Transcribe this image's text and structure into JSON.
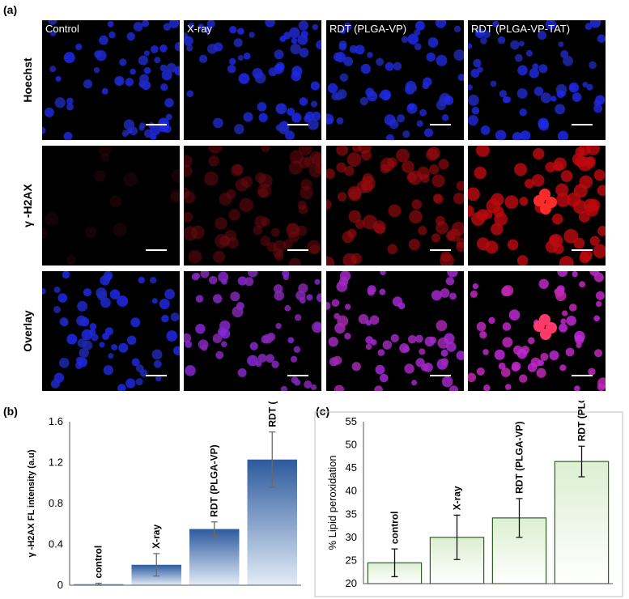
{
  "figure": {
    "panel_a": "(a)",
    "panel_b": "(b)",
    "panel_c": "(c)",
    "columns": [
      "Control",
      "X-ray",
      "RDT (PLGA-VP)",
      "RDT (PLGA-VP-TAT)"
    ],
    "rows": [
      "Hoechst",
      "γ -H2AX",
      "Overlay"
    ]
  },
  "chart_data": [
    {
      "type": "bar",
      "categories": [
        "control",
        "X-ray",
        "RDT (PLGA-VP)",
        "RDT (PLGA-VP-TAT)"
      ],
      "values": [
        0.01,
        0.2,
        0.55,
        1.23
      ],
      "errors": [
        0.01,
        0.11,
        0.07,
        0.27
      ],
      "title": "",
      "xlabel": "",
      "ylabel": "γ -H2AX FL intensity (a.u)",
      "ylim": [
        0,
        1.6
      ],
      "yticks": [
        "0",
        "0.4",
        "0.8",
        "1.2",
        "1.6"
      ],
      "grid": false,
      "color": "#3e68a8"
    },
    {
      "type": "bar",
      "categories": [
        "control",
        "X-ray",
        "RDT (PLGA-VP)",
        "RDT (PLGA-VP-TAT)"
      ],
      "values": [
        24.5,
        30.0,
        34.2,
        46.4
      ],
      "errors": [
        3.0,
        4.8,
        4.2,
        3.3
      ],
      "title": "",
      "xlabel": "",
      "ylabel": "% Lipid peroxidation",
      "ylim": [
        20,
        55
      ],
      "yticks": [
        "20",
        "25",
        "30",
        "35",
        "40",
        "45",
        "50",
        "55"
      ],
      "grid": false,
      "color": "#7fb86a"
    }
  ]
}
